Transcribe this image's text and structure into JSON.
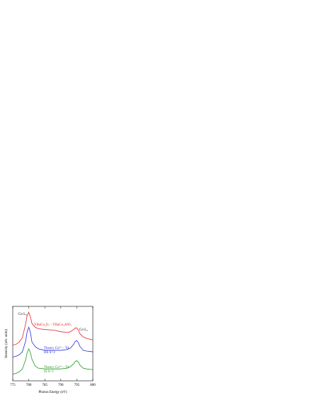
{
  "chart_data": {
    "type": "line",
    "x_label": "Photon Energy (eV)",
    "y_label": "Intensity (arb. units)",
    "xlim": [
      775,
      800
    ],
    "xticks": [
      775,
      780,
      785,
      790,
      795,
      800
    ],
    "ylim": [
      0,
      10
    ],
    "x": [
      775,
      776,
      777,
      778,
      779,
      779.5,
      780,
      780.5,
      781,
      782,
      783,
      785,
      788,
      790,
      792,
      793,
      794,
      794.5,
      795,
      795.5,
      796,
      797,
      798,
      800
    ],
    "series": [
      {
        "color": "#e8222a",
        "values": [
          4.8,
          4.9,
          5.2,
          5.8,
          7.6,
          8.8,
          9.2,
          8.6,
          7.7,
          7.2,
          7.0,
          6.9,
          6.8,
          6.6,
          6.5,
          6.6,
          6.9,
          7.1,
          7.1,
          6.8,
          6.3,
          5.9,
          5.7,
          5.5
        ]
      },
      {
        "color": "#2b2bdc",
        "values": [
          3.2,
          3.3,
          3.5,
          3.9,
          5.3,
          6.6,
          7.2,
          6.5,
          5.2,
          4.6,
          4.3,
          4.1,
          4.1,
          4.1,
          4.2,
          4.4,
          4.9,
          5.3,
          5.4,
          5.1,
          4.6,
          4.1,
          4.0,
          3.9
        ]
      },
      {
        "color": "#1e9a1e",
        "values": [
          0.9,
          1.0,
          1.2,
          1.6,
          2.8,
          3.8,
          4.3,
          3.8,
          2.9,
          2.0,
          1.7,
          1.6,
          1.6,
          1.6,
          1.7,
          1.9,
          2.3,
          2.6,
          2.7,
          2.5,
          2.1,
          1.7,
          1.6,
          1.5
        ]
      }
    ],
    "annotations": [
      {
        "text": "Co L₃",
        "color": "#000000"
      },
      {
        "text": "YBaCo₄O₇ - YBaCo₃AlO₇",
        "color": "#e8222a"
      },
      {
        "text": "Co L₂",
        "color": "#000000"
      },
      {
        "text": "Theory Co²⁺ - Td",
        "color": "#2b2bdc"
      },
      {
        "text": "HS S=2",
        "color": "#2b2bdc"
      },
      {
        "text": "Theory Co³⁺ - Td",
        "color": "#1e9a1e"
      },
      {
        "text": "IS S=1",
        "color": "#1e9a1e"
      }
    ]
  }
}
